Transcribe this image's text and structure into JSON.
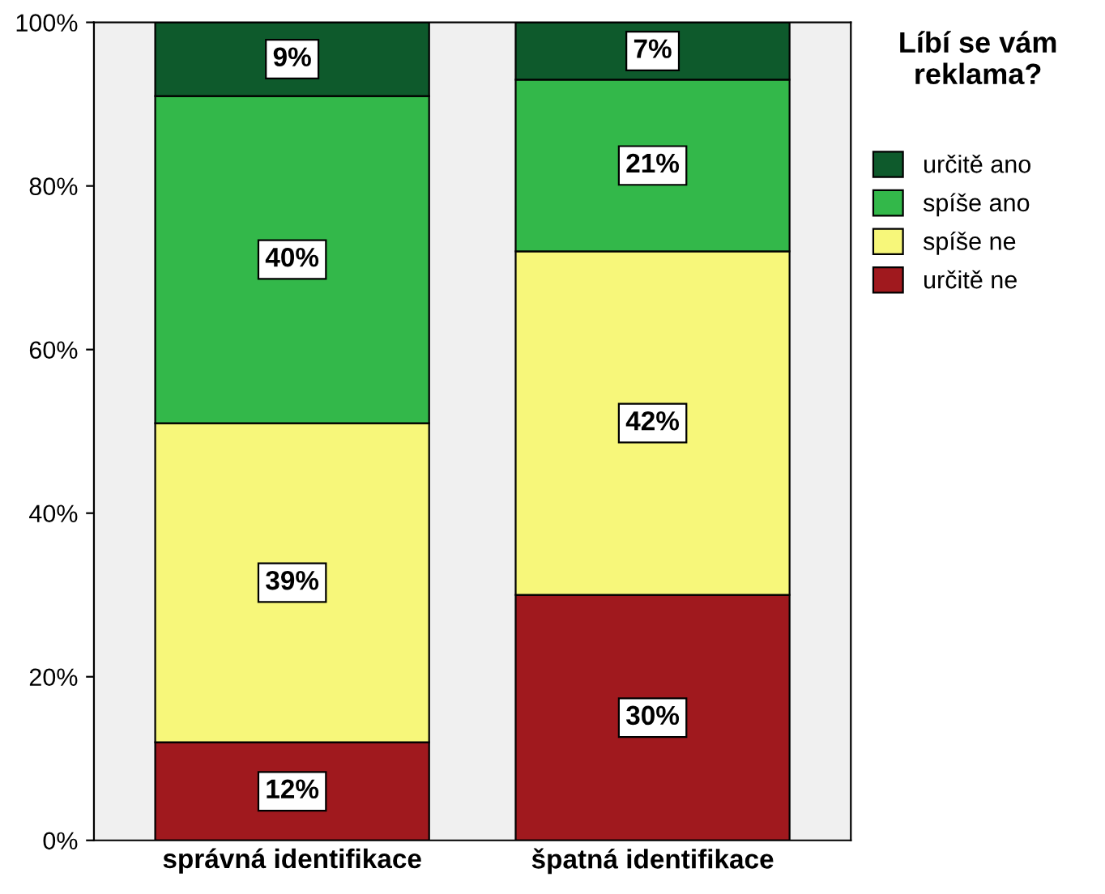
{
  "chart_data": {
    "type": "bar",
    "stacked": true,
    "categories": [
      "správná identifikace",
      "špatná identifikace"
    ],
    "series": [
      {
        "name": "určitě ne",
        "color": "#a0191e",
        "values": [
          12,
          30
        ],
        "value_labels": [
          "12%",
          "30%"
        ]
      },
      {
        "name": "spíše ne",
        "color": "#f7f77a",
        "values": [
          39,
          42
        ],
        "value_labels": [
          "39%",
          "42%"
        ]
      },
      {
        "name": "spíše ano",
        "color": "#33b84a",
        "values": [
          40,
          21
        ],
        "value_labels": [
          "40%",
          "21%"
        ]
      },
      {
        "name": "určitě ano",
        "color": "#0e5a2c",
        "values": [
          9,
          7
        ],
        "value_labels": [
          "9%",
          "7%"
        ]
      }
    ],
    "legend_title": "Líbí se vám reklama?",
    "legend": "right",
    "grid": false,
    "ylim": [
      0,
      100
    ],
    "yticks": [
      {
        "value": 0,
        "label": "0%"
      },
      {
        "value": 20,
        "label": "20%"
      },
      {
        "value": 40,
        "label": "40%"
      },
      {
        "value": 60,
        "label": "60%"
      },
      {
        "value": 80,
        "label": "80%"
      },
      {
        "value": 100,
        "label": "100%"
      }
    ]
  }
}
